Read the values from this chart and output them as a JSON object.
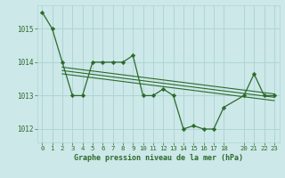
{
  "title": "Graphe pression niveau de la mer (hPa)",
  "background_color": "#cce8e8",
  "grid_color": "#b0d4d4",
  "line_color": "#2d6a2d",
  "xlim": [
    -0.5,
    23.5
  ],
  "ylim": [
    1011.6,
    1015.7
  ],
  "yticks": [
    1012,
    1013,
    1014,
    1015
  ],
  "xticks": [
    0,
    1,
    2,
    3,
    4,
    5,
    6,
    7,
    8,
    9,
    10,
    11,
    12,
    13,
    14,
    15,
    16,
    17,
    18,
    20,
    21,
    22,
    23
  ],
  "series": [
    {
      "x": [
        0,
        1,
        2,
        3,
        4,
        5,
        6,
        7,
        8,
        9,
        10,
        11,
        12,
        13,
        14,
        15,
        16,
        17,
        18,
        20,
        21,
        22,
        23
      ],
      "y": [
        1015.5,
        1015.0,
        1014.0,
        1013.0,
        1013.0,
        1014.0,
        1014.0,
        1014.0,
        1014.0,
        1014.2,
        1013.0,
        1013.0,
        1013.2,
        1013.0,
        1012.0,
        1012.1,
        1012.0,
        1012.0,
        1012.65,
        1013.0,
        1013.65,
        1013.0,
        1013.0
      ],
      "has_markers": true
    },
    {
      "x": [
        2,
        23
      ],
      "y": [
        1013.85,
        1013.05
      ],
      "has_markers": false
    },
    {
      "x": [
        2,
        23
      ],
      "y": [
        1013.75,
        1012.95
      ],
      "has_markers": false
    },
    {
      "x": [
        2,
        23
      ],
      "y": [
        1013.65,
        1012.85
      ],
      "has_markers": false
    }
  ]
}
